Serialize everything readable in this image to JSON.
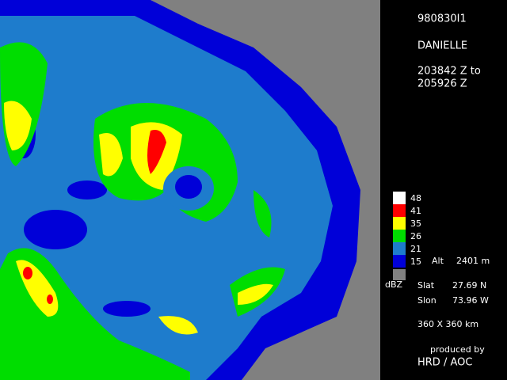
{
  "header": {
    "flight": "980830I1",
    "storm": "DANIELLE",
    "time_from": "203842 Z to",
    "time_to": "205926 Z"
  },
  "legend": {
    "unit": "dBZ",
    "items": [
      {
        "label": "48",
        "color": "#ffffff"
      },
      {
        "label": "41",
        "color": "#ff0000"
      },
      {
        "label": "35",
        "color": "#ffff00"
      },
      {
        "label": "26",
        "color": "#00dd00"
      },
      {
        "label": "21",
        "color": "#1e7ccc"
      },
      {
        "label": "15",
        "color": "#0000d8"
      }
    ],
    "no_data_color": "#808080"
  },
  "info": {
    "alt_label": "Alt",
    "alt_value": "2401 m",
    "slat_label": "Slat",
    "slat_value": "27.69 N",
    "slon_label": "Slon",
    "slon_value": "73.96 W",
    "domain": "360 X 360 km"
  },
  "credit": {
    "line1": "produced by",
    "line2": "HRD / AOC"
  }
}
